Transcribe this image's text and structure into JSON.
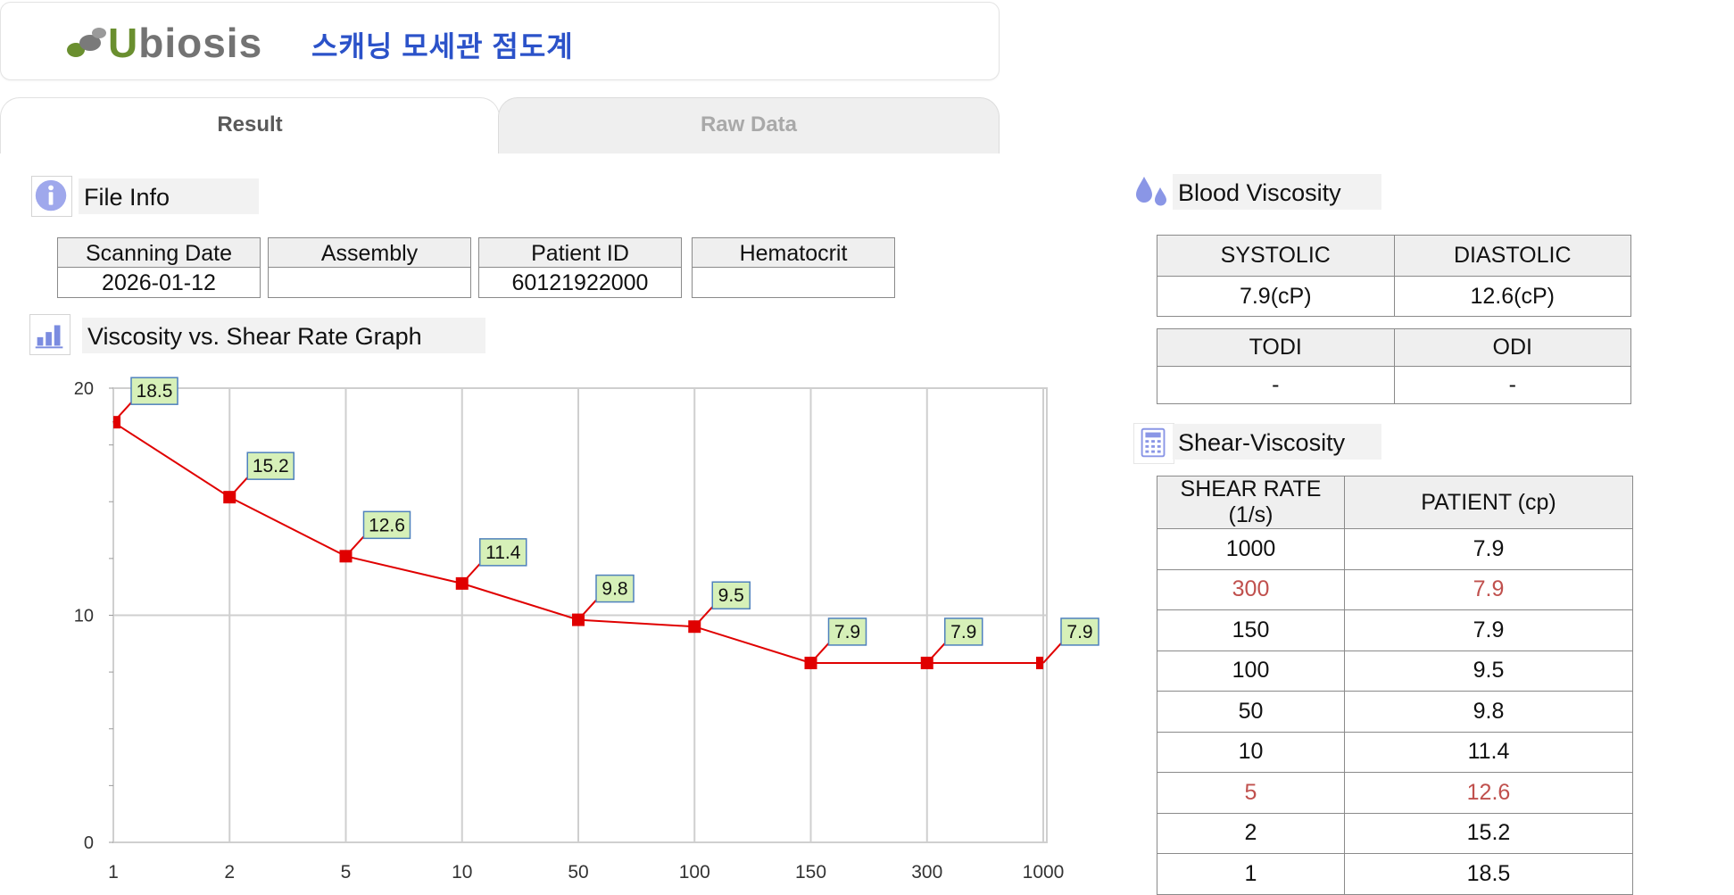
{
  "header": {
    "logo_text_u": "U",
    "logo_text_rest": "biosis",
    "app_title": "스캐닝 모세관 점도계"
  },
  "tabs": [
    {
      "label": "Result",
      "active": true
    },
    {
      "label": "Raw Data",
      "active": false
    }
  ],
  "file_info": {
    "title": "File Info",
    "icon": "info-icon",
    "columns": [
      {
        "label": "Scanning Date",
        "value": "2026-01-12"
      },
      {
        "label": "Assembly",
        "value": ""
      },
      {
        "label": "Patient ID",
        "value": "60121922000"
      },
      {
        "label": "Hematocrit",
        "value": ""
      }
    ]
  },
  "graph": {
    "title": "Viscosity vs. Shear Rate Graph",
    "icon": "bar-chart-icon"
  },
  "chart_data": {
    "type": "line",
    "categories": [
      "1",
      "2",
      "5",
      "10",
      "50",
      "100",
      "150",
      "300",
      "1000"
    ],
    "series": [
      {
        "values": [
          18.5,
          15.2,
          12.6,
          11.4,
          9.8,
          9.5,
          7.9,
          7.9,
          7.9
        ],
        "color": "#e00000"
      }
    ],
    "data_labels": [
      "18.5",
      "15.2",
      "12.6",
      "11.4",
      "9.8",
      "9.5",
      "7.9",
      "7.9",
      "7.9"
    ],
    "y_ticks": [
      "0",
      "10",
      "20"
    ],
    "ylim": [
      0,
      20
    ],
    "grid": true,
    "label_bg": "#d6f0b8",
    "label_border": "#4f81bd"
  },
  "blood_viscosity": {
    "title": "Blood Viscosity",
    "icon": "drops-icon",
    "headers": [
      "SYSTOLIC",
      "DIASTOLIC"
    ],
    "values": [
      "7.9(cP)",
      "12.6(cP)"
    ],
    "headers2": [
      "TODI",
      "ODI"
    ],
    "values2": [
      "-",
      "-"
    ]
  },
  "shear_viscosity": {
    "title": "Shear-Viscosity",
    "icon": "calculator-icon",
    "headers": [
      "SHEAR RATE (1/s)",
      "PATIENT (cp)"
    ],
    "rows": [
      {
        "rate": "1000",
        "patient": "7.9",
        "highlight": false
      },
      {
        "rate": "300",
        "patient": "7.9",
        "highlight": true
      },
      {
        "rate": "150",
        "patient": "7.9",
        "highlight": false
      },
      {
        "rate": "100",
        "patient": "9.5",
        "highlight": false
      },
      {
        "rate": "50",
        "patient": "9.8",
        "highlight": false
      },
      {
        "rate": "10",
        "patient": "11.4",
        "highlight": false
      },
      {
        "rate": "5",
        "patient": "12.6",
        "highlight": true
      },
      {
        "rate": "2",
        "patient": "15.2",
        "highlight": false
      },
      {
        "rate": "1",
        "patient": "18.5",
        "highlight": false
      }
    ],
    "highlight_color": "#c0504d"
  }
}
